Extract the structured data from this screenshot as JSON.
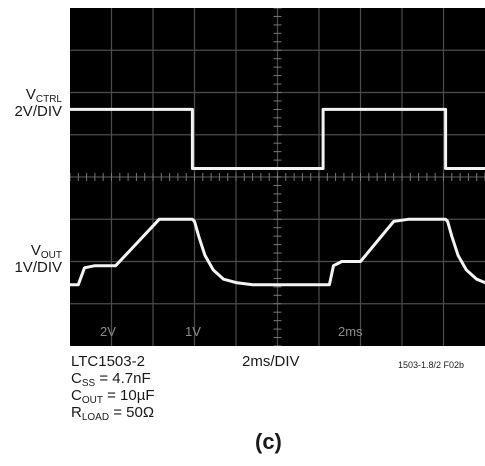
{
  "channels": {
    "vctrl": {
      "main": "V",
      "sub": "CTRL",
      "scale": "2V/DIV"
    },
    "vout": {
      "main": "V",
      "sub": "OUT",
      "scale": "1V/DIV"
    }
  },
  "scope_footer": {
    "ch1": "2V",
    "ch2": "1V",
    "time": "2ms"
  },
  "timebase": "2ms/DIV",
  "figure_code": "1503-1.8/2 F02b",
  "conditions": {
    "part": "LTC1503-2",
    "css_main": "C",
    "css_sub": "SS",
    "css_value": " = 4.7nF",
    "cout_main": "C",
    "cout_sub": "OUT",
    "cout_value": " = 10µF",
    "rload_main": "R",
    "rload_sub": "LOAD",
    "rload_value": " = 50Ω"
  },
  "panel_label": "(c)",
  "chart_data": {
    "type": "line",
    "xlabel": "2ms/DIV",
    "xlim": [
      0,
      10
    ],
    "grid": true,
    "series": [
      {
        "name": "VCTRL",
        "x": [
          0,
          2.95,
          2.95,
          6.1,
          6.1,
          9.05,
          9.05,
          10
        ],
        "y": [
          2.4,
          2.4,
          3.8,
          3.8,
          2.4,
          2.4,
          3.8,
          3.8
        ]
      },
      {
        "name": "VOUT",
        "x": [
          0,
          0.2,
          0.35,
          0.6,
          1.1,
          2.15,
          2.95,
          3.0,
          3.1,
          3.25,
          3.45,
          3.7,
          4.0,
          4.4,
          5.0,
          5.8,
          6.25,
          6.35,
          6.55,
          7.0,
          7.8,
          8.15,
          8.7,
          9.05,
          9.1,
          9.2,
          9.35,
          9.55,
          9.8,
          10
        ],
        "y": [
          6.55,
          6.55,
          6.15,
          6.1,
          6.1,
          5.0,
          5.0,
          5.05,
          5.4,
          5.85,
          6.2,
          6.42,
          6.5,
          6.55,
          6.55,
          6.55,
          6.55,
          6.1,
          6.0,
          6.0,
          5.05,
          5.0,
          5.0,
          5.0,
          5.05,
          5.4,
          5.85,
          6.2,
          6.42,
          6.5
        ]
      }
    ]
  }
}
